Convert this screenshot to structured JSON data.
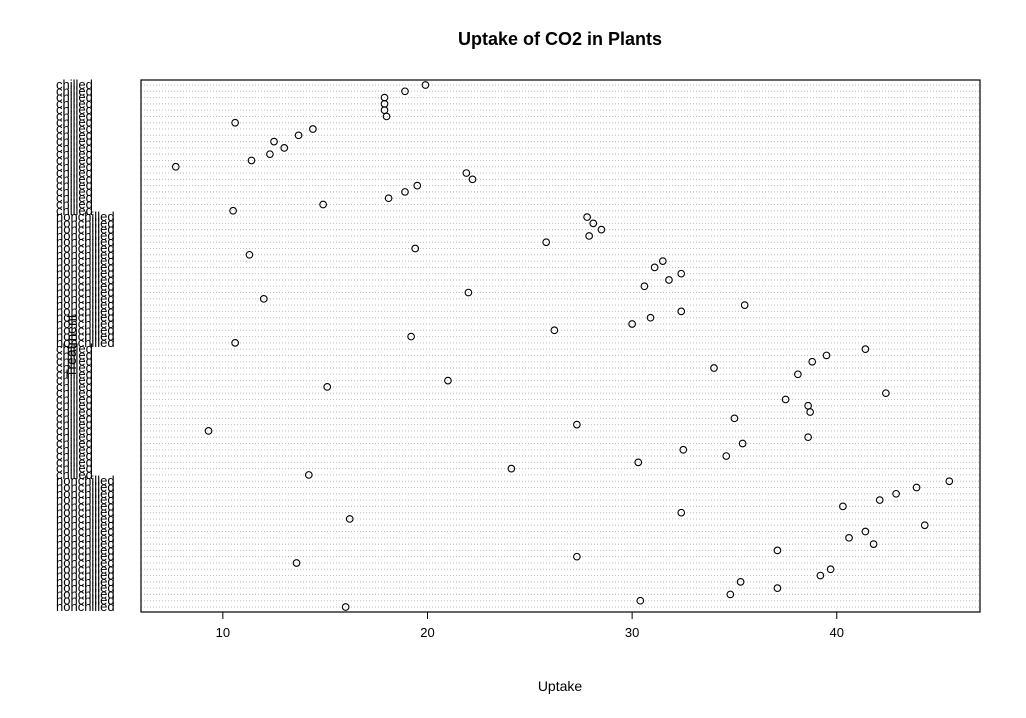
{
  "chart_data": {
    "type": "scatter",
    "title": "Uptake of CO2 in Plants",
    "xlabel": "Uptake",
    "ylabel": "Treatment",
    "xlim": [
      6,
      47
    ],
    "xticks": [
      10,
      20,
      30,
      40
    ],
    "grid": true,
    "groups": [
      {
        "label": "chilled",
        "values": [
          19.9,
          18.9,
          17.9,
          17.9,
          17.9,
          18.0,
          10.6,
          14.4,
          13.7,
          12.5,
          13.0,
          12.3,
          11.4,
          7.7,
          21.9,
          22.2,
          19.5,
          18.9,
          18.1,
          14.9,
          10.5
        ]
      },
      {
        "label": "nonchilled",
        "values": [
          27.8,
          28.1,
          28.5,
          27.9,
          25.8,
          19.4,
          11.3,
          31.5,
          31.1,
          32.4,
          31.8,
          30.6,
          22.0,
          12.0,
          35.5,
          32.4,
          30.9,
          30.0,
          26.2,
          19.2,
          10.6
        ]
      },
      {
        "label": "chilled",
        "values": [
          41.4,
          39.5,
          38.8,
          34.0,
          38.1,
          21.0,
          15.1,
          42.4,
          37.5,
          38.6,
          38.7,
          35.0,
          27.3,
          9.3,
          38.6,
          35.4,
          32.5,
          34.6,
          30.3,
          24.1,
          14.2
        ]
      },
      {
        "label": "nonchilled",
        "values": [
          45.5,
          43.9,
          42.9,
          42.1,
          40.3,
          32.4,
          16.2,
          44.3,
          41.4,
          40.6,
          41.8,
          37.1,
          27.3,
          13.6,
          39.7,
          39.2,
          35.3,
          37.1,
          34.8,
          30.4,
          16.0
        ]
      }
    ]
  }
}
